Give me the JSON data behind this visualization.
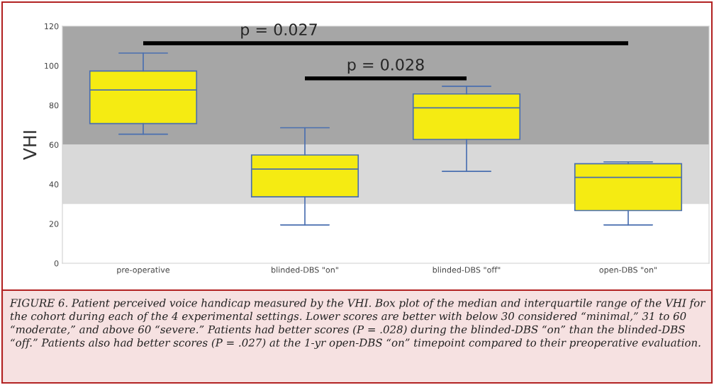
{
  "chart_data": {
    "type": "box",
    "ylabel": "VHI",
    "categories": [
      "pre-operative",
      "blinded-DBS \"on\"",
      "blinded-DBS \"off\"",
      "open-DBS \"on\""
    ],
    "boxes": [
      {
        "low": 65.3,
        "q1": 70.7,
        "median": 87.7,
        "q3": 97.3,
        "high": 106.4
      },
      {
        "low": 19.4,
        "q1": 33.6,
        "median": 47.7,
        "q3": 54.8,
        "high": 68.6
      },
      {
        "low": 46.5,
        "q1": 62.7,
        "median": 78.7,
        "q3": 85.7,
        "high": 89.6
      },
      {
        "low": 19.4,
        "q1": 26.7,
        "median": 43.5,
        "q3": 50.4,
        "high": 51.3
      }
    ],
    "color": "#f5eb12",
    "ylim": [
      0,
      120
    ],
    "yticks": [
      0,
      20,
      40,
      60,
      80,
      100,
      120
    ],
    "bands": [
      {
        "axis": "y",
        "from": 60,
        "to": 120,
        "color": "#a6a6a6"
      },
      {
        "axis": "y",
        "from": 30,
        "to": 60,
        "color": "#d9d9d9"
      }
    ],
    "annotations": [
      "p = 0.027",
      "p = 0.028",
      "FIGURE 6. Patient perceived voice handicap measured by the VHI. Box plot of the median and interquartile range of the VHI for the cohort during each of the 4 experimental settings. Lower scores are better with below 30 considered “minimal,” 31 to 60 “moderate,” and above 60 “severe.” Patients had better scores (P = .028) during the blinded-DBS “on” than the blinded-DBS “off.” Patients also had better scores (P = .027) at the 1-yr open-DBS “on” timepoint compared to their preoperative evaluation."
    ],
    "grid": false,
    "legend": false
  }
}
